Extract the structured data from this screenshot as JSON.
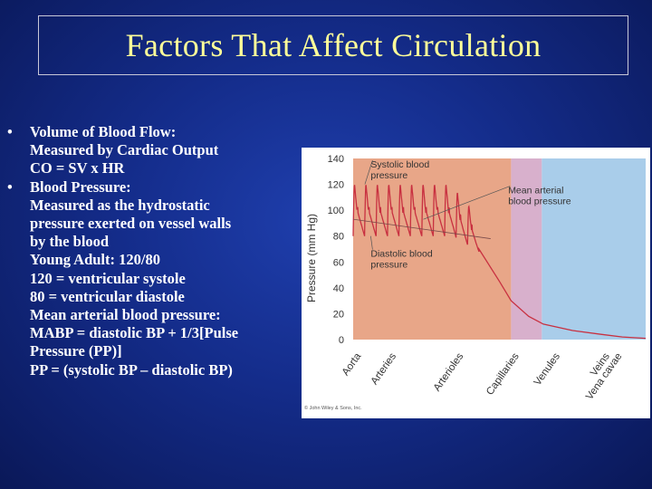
{
  "slide": {
    "title": "Factors That Affect Circulation",
    "bullets": [
      {
        "head": "Volume of Blood Flow:",
        "lines": [
          "Measured by Cardiac Output",
          "CO = SV x HR"
        ]
      },
      {
        "head": "Blood Pressure:",
        "lines": [
          "Measured as the hydrostatic",
          "pressure exerted on vessel walls",
          "by the blood",
          "Young Adult:  120/80",
          "120 = ventricular systole",
          "80   = ventricular diastole",
          "Mean arterial blood pressure:",
          "MABP = diastolic BP + 1/3[Pulse",
          "Pressure (PP)]",
          "PP = (systolic BP – diastolic BP)"
        ]
      }
    ],
    "bullet_char": "•"
  },
  "chart_data": {
    "type": "line",
    "ylabel": "Pressure (mm Hg)",
    "ylim": [
      0,
      140
    ],
    "yticks": [
      0,
      20,
      40,
      60,
      80,
      100,
      120,
      140
    ],
    "categories": [
      "Aorta",
      "Arteries",
      "Arterioles",
      "Capillaries",
      "Venules",
      "Veins",
      "Vena cavae"
    ],
    "regions": [
      {
        "name": "Arteries",
        "from": 0,
        "to": 0.54,
        "color": "#e8a688"
      },
      {
        "name": "Capillaries",
        "from": 0.54,
        "to": 0.645,
        "color": "#d8b0cc"
      },
      {
        "name": "Veins",
        "from": 0.645,
        "to": 1.0,
        "color": "#a9cdea"
      }
    ],
    "line_color": "#c83040",
    "systolic": 120,
    "diastolic": 80,
    "mean_arterial": 93,
    "series": [
      {
        "values": [
          [
            0.0,
            95
          ],
          [
            0.2,
            93
          ],
          [
            0.33,
            92
          ],
          [
            0.38,
            88
          ],
          [
            0.43,
            70
          ],
          [
            0.5,
            45
          ],
          [
            0.54,
            30
          ],
          [
            0.6,
            18
          ],
          [
            0.65,
            12
          ],
          [
            0.75,
            7
          ],
          [
            0.85,
            4
          ],
          [
            0.92,
            2
          ],
          [
            1.0,
            1
          ]
        ]
      }
    ],
    "annotations": [
      {
        "text": [
          "Systolic blood",
          "pressure"
        ],
        "x": 0.06,
        "y": 133,
        "target": [
          0.04,
          120
        ]
      },
      {
        "text": [
          "Mean arterial",
          "blood pressure"
        ],
        "x": 0.53,
        "y": 113,
        "target": [
          0.24,
          93
        ]
      },
      {
        "text": [
          "Diastolic blood",
          "pressure"
        ],
        "x": 0.06,
        "y": 64,
        "target": [
          0.06,
          80
        ]
      }
    ],
    "credit": "© John Wiley & Sons, Inc."
  }
}
